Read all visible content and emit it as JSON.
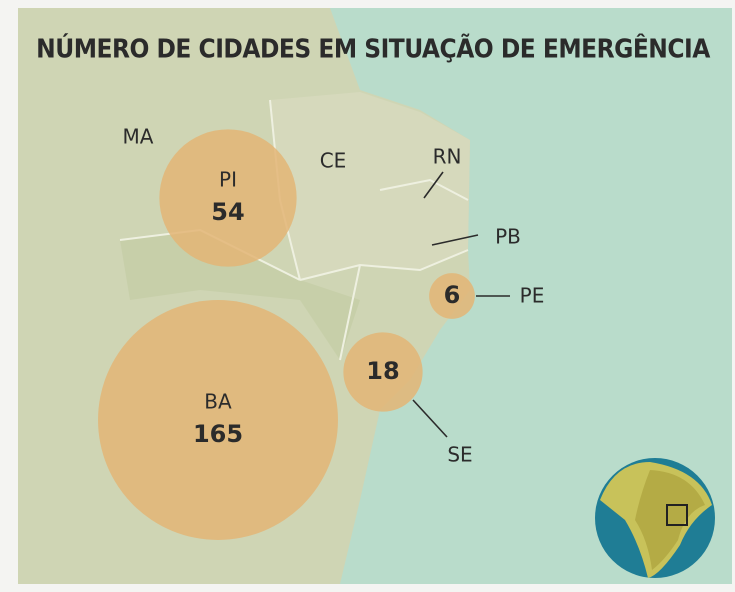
{
  "title": "NÚMERO DE CIDADES EM SITUAÇÃO DE EMERGÊNCIA",
  "state_labels": [
    "MA",
    "CE",
    "RN",
    "PB"
  ],
  "bubbles": [
    {
      "name": "PI",
      "value": 54
    },
    {
      "name": "BA",
      "value": 165
    },
    {
      "name": "SE",
      "value": 18
    },
    {
      "name": "PE",
      "value": 6
    }
  ]
}
